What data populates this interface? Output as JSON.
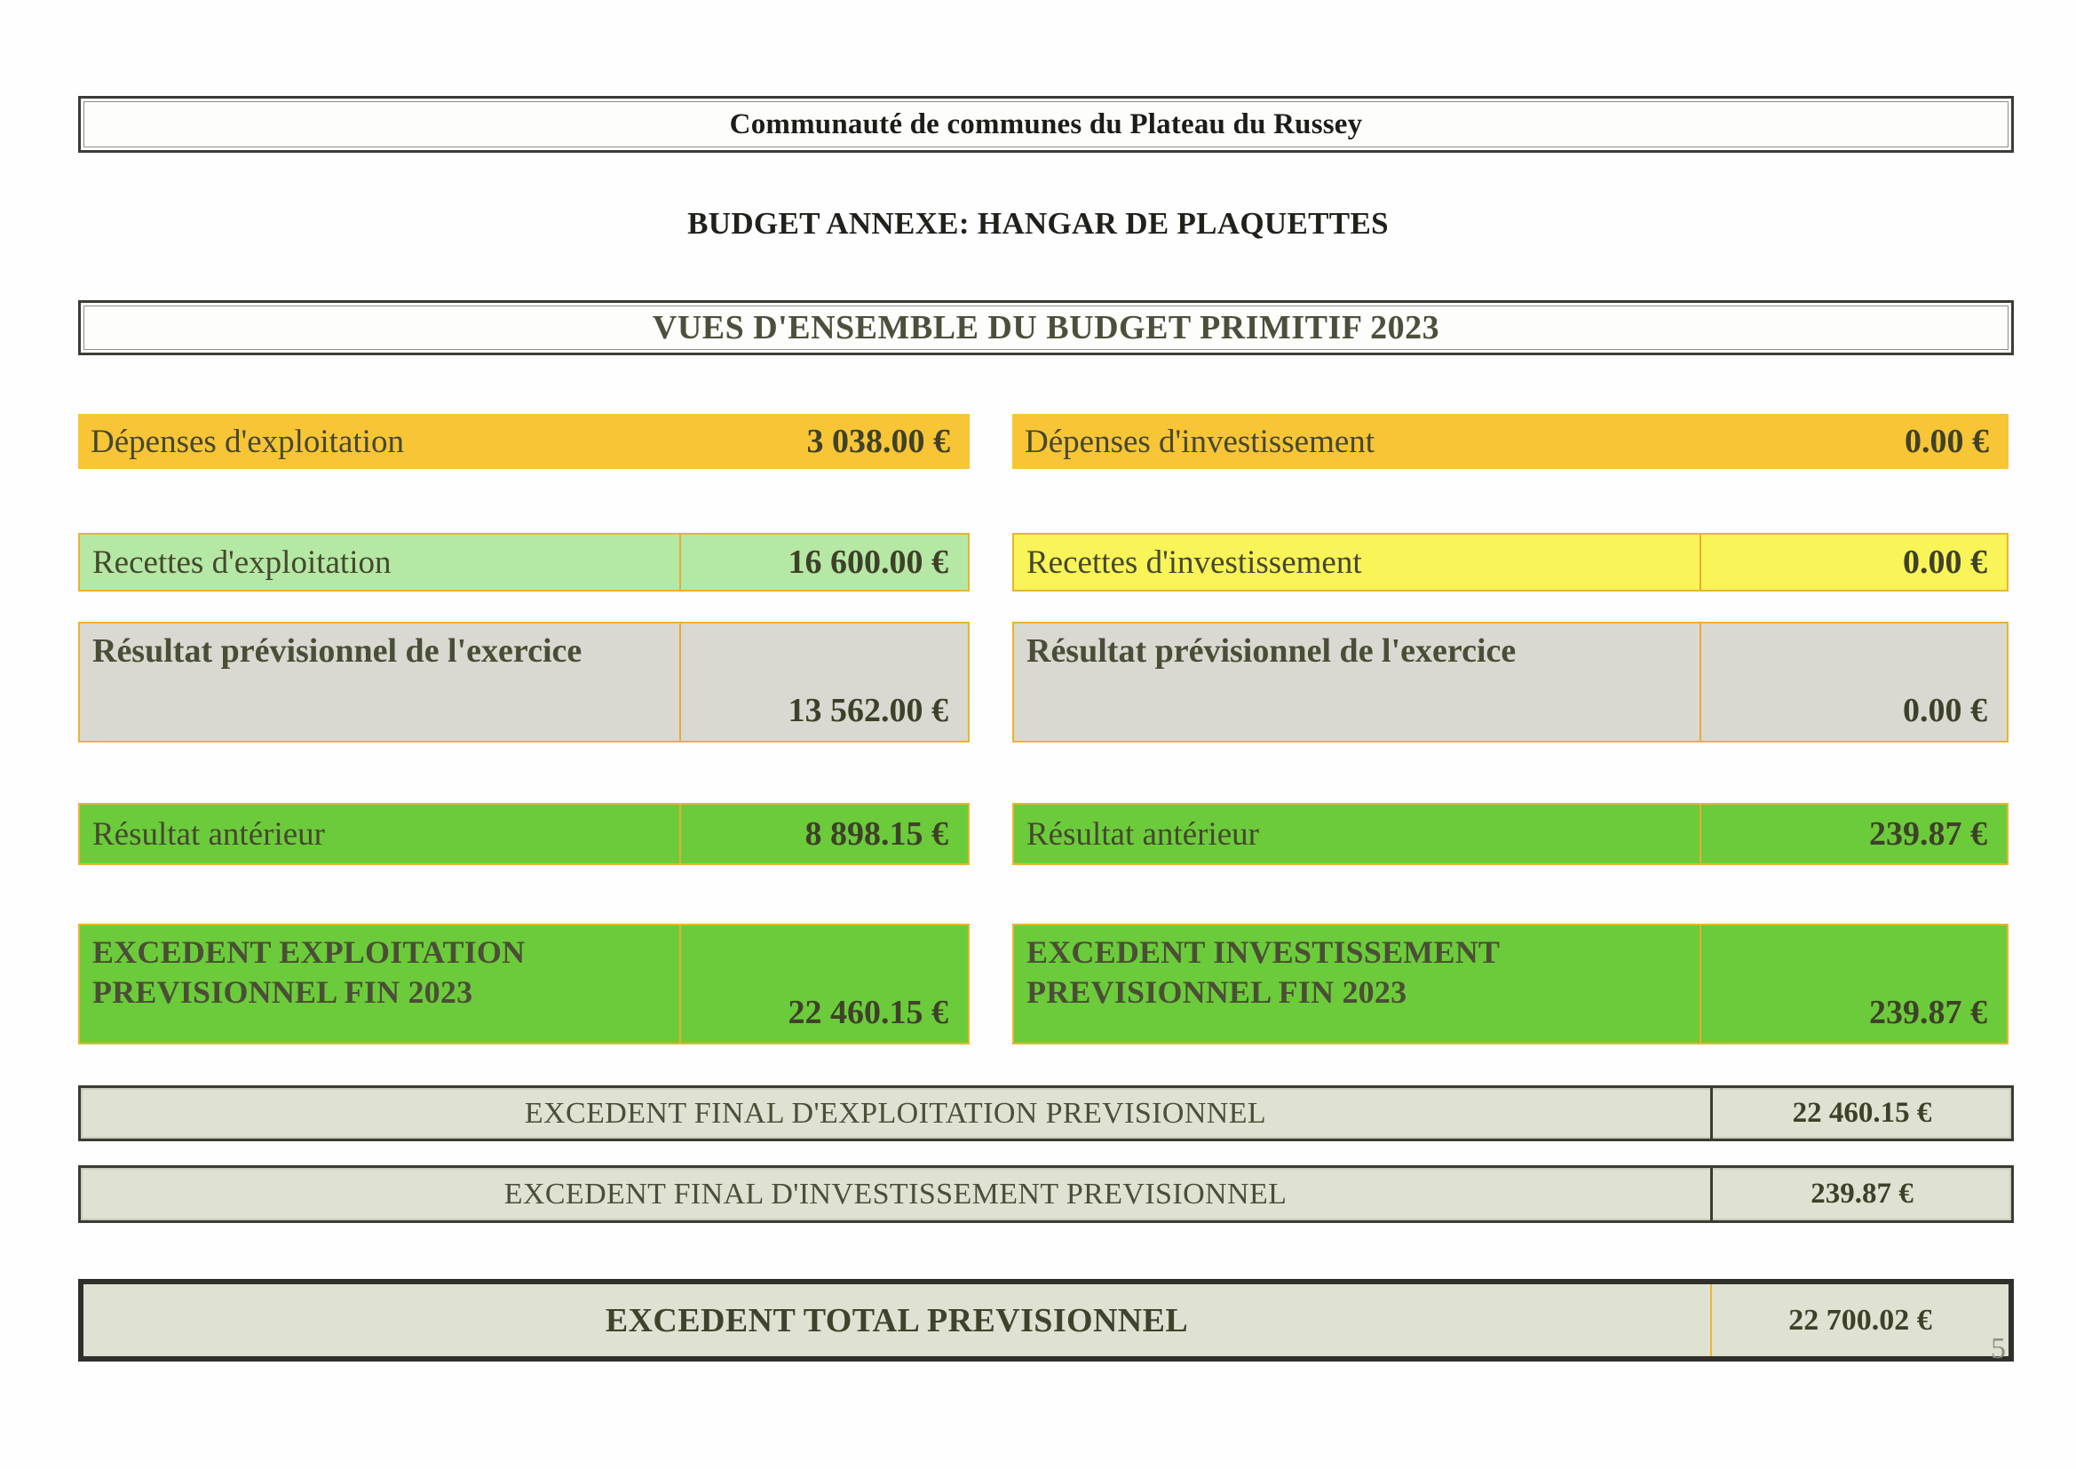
{
  "document": {
    "organization": "Communauté de communes du Plateau du Russey",
    "budget_title": "BUDGET ANNEXE: HANGAR DE PLAQUETTES",
    "overview_title": "VUES D'ENSEMBLE DU BUDGET PRIMITIF 2023",
    "page_number": "5"
  },
  "colors": {
    "orange": "#f7c535",
    "light_green": "#b5e8a4",
    "yellow": "#f9f457",
    "gray": "#d9d9d1",
    "green": "#6ccb3b",
    "pale_summary": "#dfe1d2",
    "border_orange": "#e9b52e",
    "border_dark": "#3b3b35",
    "text_olive": "#45482f"
  },
  "exploitation": {
    "depenses": {
      "label": "Dépenses d'exploitation",
      "value": "3 038.00 €"
    },
    "recettes": {
      "label": "Recettes d'exploitation",
      "value": "16 600.00 €"
    },
    "resultat_previsionnel": {
      "label": "Résultat prévisionnel de l'exercice",
      "value": "13 562.00 €"
    },
    "resultat_anterieur": {
      "label": "Résultat antérieur",
      "value": "8 898.15 €"
    },
    "excedent_fin_2023": {
      "label": "EXCEDENT EXPLOITATION PREVISIONNEL FIN 2023",
      "value": "22 460.15 €"
    }
  },
  "investissement": {
    "depenses": {
      "label": "Dépenses d'investissement",
      "value": "0.00 €"
    },
    "recettes": {
      "label": "Recettes d'investissement",
      "value": "0.00 €"
    },
    "resultat_previsionnel": {
      "label": "Résultat prévisionnel de l'exercice",
      "value": "0.00 €"
    },
    "resultat_anterieur": {
      "label": "Résultat antérieur",
      "value": "239.87 €"
    },
    "excedent_fin_2023": {
      "label": "EXCEDENT INVESTISSEMENT PREVISIONNEL FIN 2023",
      "value": "239.87 €"
    }
  },
  "totals": {
    "final_exploitation": {
      "label": "EXCEDENT FINAL D'EXPLOITATION PREVISIONNEL",
      "value": "22 460.15 €"
    },
    "final_investissement": {
      "label": "EXCEDENT FINAL D'INVESTISSEMENT PREVISIONNEL",
      "value": "239.87 €"
    },
    "grand_total": {
      "label": "EXCEDENT TOTAL PREVISIONNEL",
      "value": "22 700.02 €"
    }
  }
}
